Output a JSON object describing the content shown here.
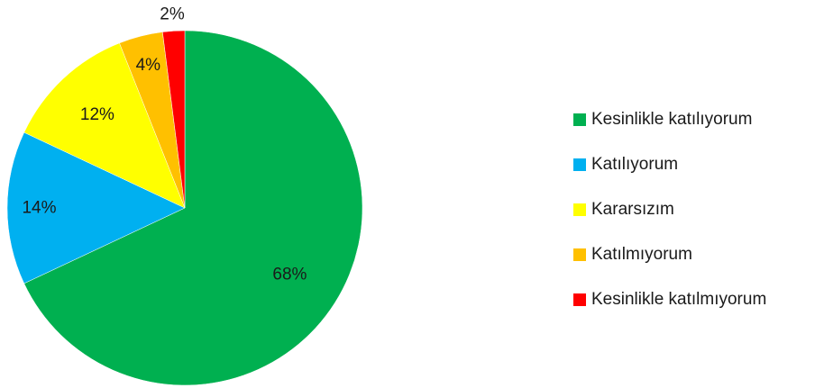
{
  "chart_data": {
    "type": "pie",
    "title": "",
    "slices": [
      {
        "label": "Kesinlikle katılıyorum",
        "value": 68,
        "display": "68%",
        "color": "#00B050"
      },
      {
        "label": "Katılıyorum",
        "value": 14,
        "display": "14%",
        "color": "#00B0F0"
      },
      {
        "label": "Kararsızım",
        "value": 12,
        "display": "12%",
        "color": "#FFFF00"
      },
      {
        "label": "Katılmıyorum",
        "value": 4,
        "display": "4%",
        "color": "#FFC000"
      },
      {
        "label": "Kesinlikle katılmıyorum",
        "value": 2,
        "display": "2%",
        "color": "#FF0000"
      }
    ],
    "legend_position": "right"
  }
}
